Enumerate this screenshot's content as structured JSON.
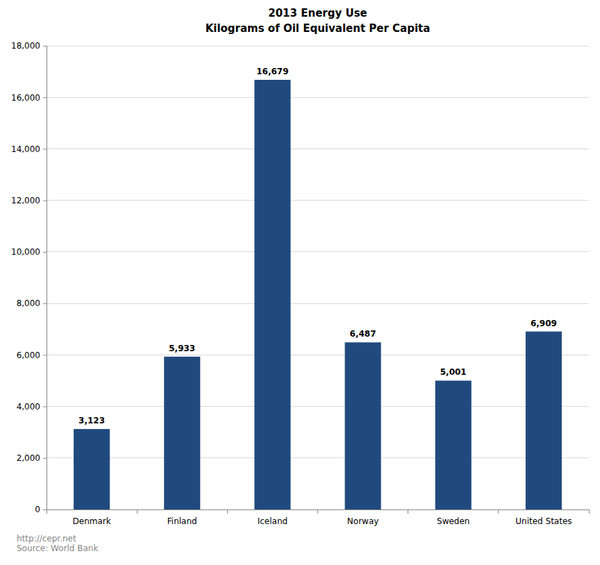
{
  "chart_data": {
    "type": "bar",
    "title": "2013 Energy Use",
    "subtitle": "Kilograms of Oil Equivalent Per Capita",
    "categories": [
      "Denmark",
      "Finland",
      "Iceland",
      "Norway",
      "Sweden",
      "United States"
    ],
    "values": [
      3123,
      5933,
      16679,
      6487,
      5001,
      6909
    ],
    "value_labels": [
      "3,123",
      "5,933",
      "16,679",
      "6,487",
      "5,001",
      "6,909"
    ],
    "color": "#204a7e",
    "ylim": [
      0,
      18000
    ],
    "yticks": [
      0,
      {
        "value": 2000,
        "label": "2,000"
      },
      {
        "value": 4000,
        "label": "4,000"
      },
      {
        "value": 6000,
        "label": "6,000"
      },
      {
        "value": 8000,
        "label": "8,000"
      },
      {
        "value": 10000,
        "label": "10,000"
      },
      {
        "value": 12000,
        "label": "12,000"
      },
      {
        "value": 14000,
        "label": "14,000"
      },
      {
        "value": 16000,
        "label": "16,000"
      },
      {
        "value": 18000,
        "label": "18,000"
      }
    ],
    "grid": true,
    "data_labels": true,
    "annotations": [
      "http://cepr.net",
      "Source: World Bank"
    ]
  }
}
